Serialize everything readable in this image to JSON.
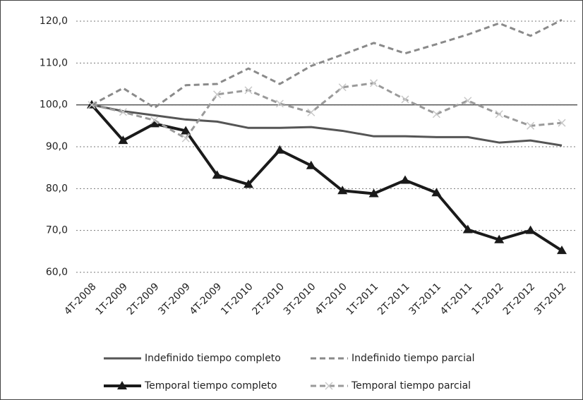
{
  "chart_data": {
    "type": "line",
    "categories": [
      "4T-2008",
      "1T-2009",
      "2T-2009",
      "3T-2009",
      "4T-2009",
      "1T-2010",
      "2T-2010",
      "3T-2010",
      "4T-2010",
      "1T-2011",
      "2T-2011",
      "3T-2011",
      "4T-2011",
      "1T-2012",
      "2T-2012",
      "3T-2012"
    ],
    "series": [
      {
        "name": "Indefinido tiempo completo",
        "color": "#555555",
        "dash": false,
        "marker": null,
        "values": [
          100,
          98.5,
          97.5,
          96.5,
          96,
          94.5,
          94.5,
          94.7,
          93.8,
          92.5,
          92.5,
          92.3,
          92.3,
          91,
          91.5,
          90.3
        ]
      },
      {
        "name": "Indefinido tiempo parcial",
        "color": "#8a8a8a",
        "dash": true,
        "marker": null,
        "values": [
          100,
          104,
          99.3,
          104.7,
          105,
          108.7,
          105,
          109.3,
          112,
          114.8,
          112.3,
          114.5,
          116.8,
          119.5,
          116.5,
          120.3
        ]
      },
      {
        "name": "Temporal tiempo completo",
        "color": "#1a1a1a",
        "dash": false,
        "marker": "triangle",
        "values": [
          100,
          91.5,
          95.5,
          93.8,
          83.2,
          81,
          89.2,
          85.5,
          79.5,
          78.8,
          82,
          79,
          70.2,
          67.8,
          70,
          65.2
        ]
      },
      {
        "name": "Temporal tiempo parcial",
        "color": "#9a9a9a",
        "dash": true,
        "marker": "x",
        "values": [
          100,
          98.3,
          96.3,
          92,
          102.5,
          103.5,
          100.3,
          98.2,
          104.2,
          105.2,
          101.3,
          97.8,
          101,
          97.8,
          95,
          95.7
        ]
      }
    ],
    "ylim": [
      60,
      120
    ],
    "yticks": [
      {
        "value": 60,
        "label": "60,0"
      },
      {
        "value": 70,
        "label": "70,0"
      },
      {
        "value": 80,
        "label": "80,0"
      },
      {
        "value": 90,
        "label": "90,0"
      },
      {
        "value": 100,
        "label": "100,0"
      },
      {
        "value": 110,
        "label": "110,0"
      },
      {
        "value": 120,
        "label": "120,0"
      }
    ],
    "reference_line": 100,
    "grid": true,
    "legend": "bottom"
  }
}
